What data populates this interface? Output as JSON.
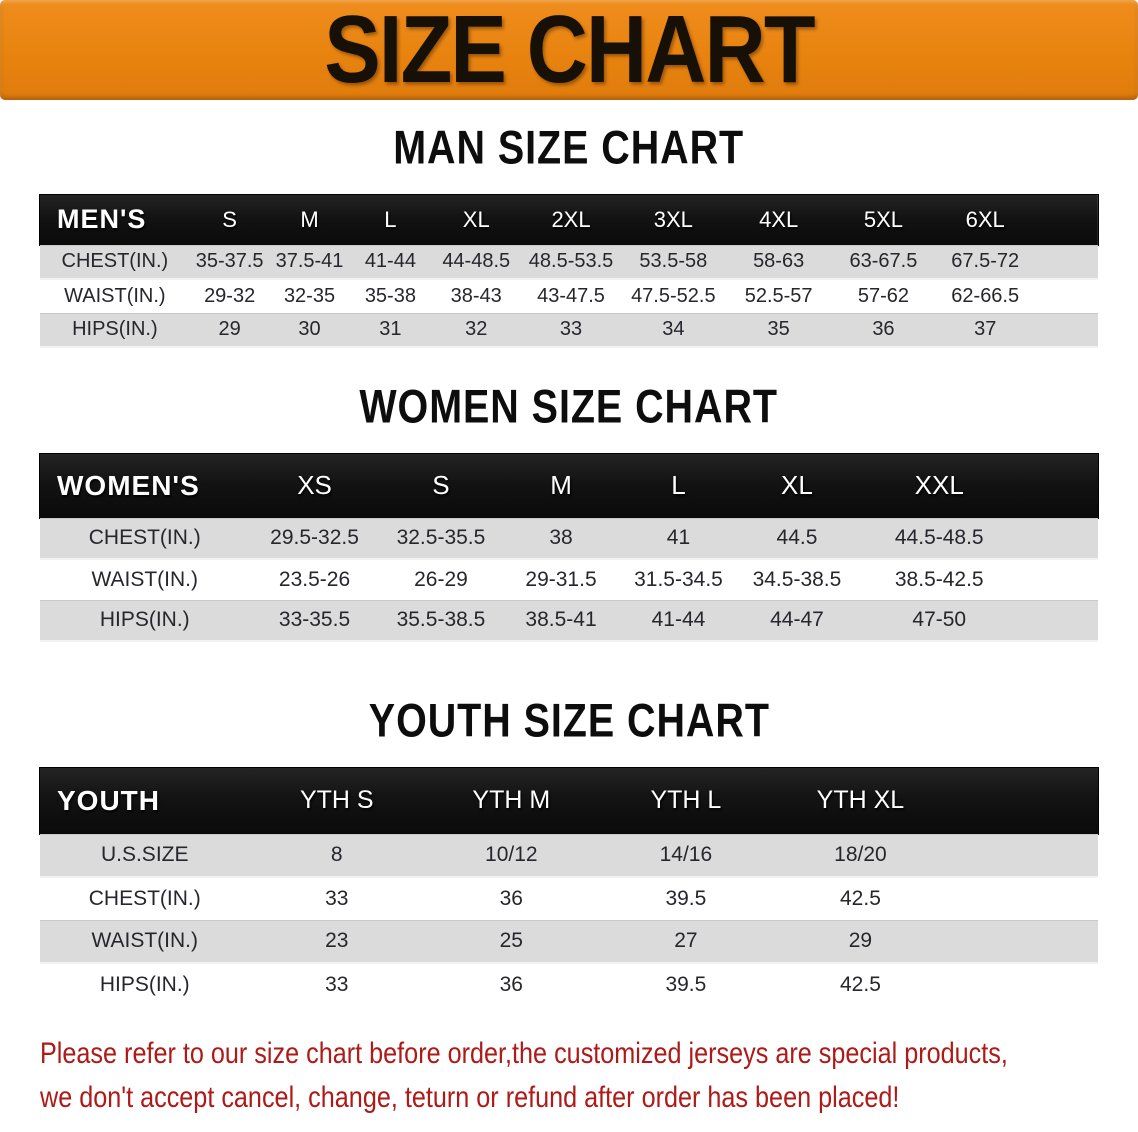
{
  "banner": {
    "title": "SIZE CHART"
  },
  "colors": {
    "banner_orange": "#e8830f",
    "header_black": "#141414",
    "row_gray": "#dbdbdb",
    "disclaimer_red": "#ae1a17"
  },
  "sections": [
    {
      "title": "MAN SIZE CHART",
      "header_label": "MEN'S",
      "sizes": [
        "S",
        "M",
        "L",
        "XL",
        "2XL",
        "3XL",
        "4XL",
        "5XL",
        "6XL"
      ],
      "rows": [
        {
          "label": "CHEST(IN.)",
          "values": [
            "35-37.5",
            "37.5-41",
            "41-44",
            "44-48.5",
            "48.5-53.5",
            "53.5-58",
            "58-63",
            "63-67.5",
            "67.5-72"
          ]
        },
        {
          "label": "WAIST(IN.)",
          "values": [
            "29-32",
            "32-35",
            "35-38",
            "38-43",
            "43-47.5",
            "47.5-52.5",
            "52.5-57",
            "57-62",
            "62-66.5"
          ]
        },
        {
          "label": "HIPS(IN.)",
          "values": [
            "29",
            "30",
            "31",
            "32",
            "33",
            "34",
            "35",
            "36",
            "37"
          ]
        }
      ]
    },
    {
      "title": "WOMEN SIZE CHART",
      "header_label": "WOMEN'S",
      "sizes": [
        "XS",
        "S",
        "M",
        "L",
        "XL",
        "XXL"
      ],
      "rows": [
        {
          "label": "CHEST(IN.)",
          "values": [
            "29.5-32.5",
            "32.5-35.5",
            "38",
            "41",
            "44.5",
            "44.5-48.5"
          ]
        },
        {
          "label": "WAIST(IN.)",
          "values": [
            "23.5-26",
            "26-29",
            "29-31.5",
            "31.5-34.5",
            "34.5-38.5",
            "38.5-42.5"
          ]
        },
        {
          "label": "HIPS(IN.)",
          "values": [
            "33-35.5",
            "35.5-38.5",
            "38.5-41",
            "41-44",
            "44-47",
            "47-50"
          ]
        }
      ]
    },
    {
      "title": "YOUTH SIZE CHART",
      "header_label": "YOUTH",
      "sizes": [
        "YTH S",
        "YTH M",
        "YTH L",
        "YTH XL"
      ],
      "rows": [
        {
          "label": "U.S.SIZE",
          "values": [
            "8",
            "10/12",
            "14/16",
            "18/20"
          ]
        },
        {
          "label": "CHEST(IN.)",
          "values": [
            "33",
            "36",
            "39.5",
            "42.5"
          ]
        },
        {
          "label": "WAIST(IN.)",
          "values": [
            "23",
            "25",
            "27",
            "29"
          ]
        },
        {
          "label": "HIPS(IN.)",
          "values": [
            "33",
            "36",
            "39.5",
            "42.5"
          ]
        }
      ]
    }
  ],
  "disclaimer": {
    "line1": "Please refer to our size chart before order,the customized jerseys are special products,",
    "line2": "we don't accept cancel, change, teturn or refund after order has been placed!"
  }
}
